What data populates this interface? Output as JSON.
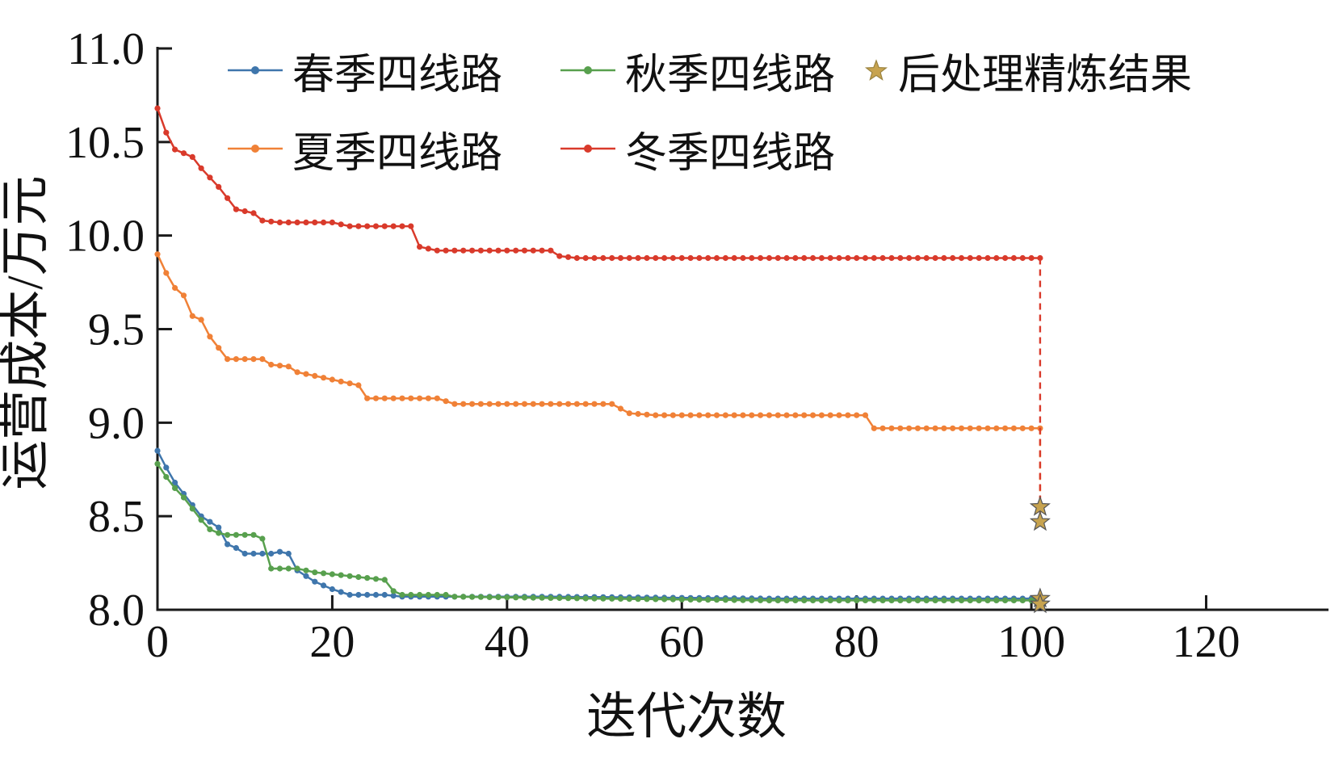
{
  "chart_data": {
    "type": "line",
    "title": "",
    "xlabel": "迭代次数",
    "ylabel": "运营成本/万元",
    "xlim": [
      0,
      134
    ],
    "ylim": [
      8.0,
      11.0
    ],
    "xticks": [
      0,
      20,
      40,
      60,
      80,
      100,
      120
    ],
    "yticks": [
      "8.0",
      "8.5",
      "9.0",
      "9.5",
      "10.0",
      "10.5",
      "11.0"
    ],
    "grid": false,
    "legend_position": "top-inside",
    "axis_color": "#1a1a1a",
    "series": [
      {
        "name": "春季四线路",
        "color": "#3f76ac",
        "points": [
          [
            0,
            8.85
          ],
          [
            1,
            8.76
          ],
          [
            2,
            8.68
          ],
          [
            3,
            8.62
          ],
          [
            4,
            8.56
          ],
          [
            5,
            8.5
          ],
          [
            6,
            8.47
          ],
          [
            7,
            8.44
          ],
          [
            8,
            8.35
          ],
          [
            9,
            8.33
          ],
          [
            10,
            8.3
          ],
          [
            13,
            8.3
          ],
          [
            14,
            8.31
          ],
          [
            15,
            8.3
          ],
          [
            16,
            8.21
          ],
          [
            18,
            8.15
          ],
          [
            20,
            8.11
          ],
          [
            22,
            8.08
          ],
          [
            26,
            8.08
          ],
          [
            28,
            8.07
          ],
          [
            45,
            8.07
          ],
          [
            70,
            8.06
          ],
          [
            101,
            8.06
          ]
        ]
      },
      {
        "name": "夏季四线路",
        "color": "#f08137",
        "points": [
          [
            0,
            9.9
          ],
          [
            1,
            9.8
          ],
          [
            2,
            9.72
          ],
          [
            3,
            9.68
          ],
          [
            4,
            9.57
          ],
          [
            5,
            9.55
          ],
          [
            6,
            9.46
          ],
          [
            7,
            9.4
          ],
          [
            8,
            9.34
          ],
          [
            12,
            9.34
          ],
          [
            13,
            9.31
          ],
          [
            15,
            9.3
          ],
          [
            16,
            9.27
          ],
          [
            18,
            9.25
          ],
          [
            20,
            9.23
          ],
          [
            22,
            9.21
          ],
          [
            23,
            9.2
          ],
          [
            24,
            9.13
          ],
          [
            32,
            9.13
          ],
          [
            34,
            9.1
          ],
          [
            52,
            9.1
          ],
          [
            54,
            9.05
          ],
          [
            57,
            9.04
          ],
          [
            81,
            9.04
          ],
          [
            82,
            8.97
          ],
          [
            101,
            8.97
          ]
        ],
        "drop": {
          "x": 101,
          "to": 8.47
        }
      },
      {
        "name": "秋季四线路",
        "color": "#58a04e",
        "points": [
          [
            0,
            8.78
          ],
          [
            1,
            8.71
          ],
          [
            2,
            8.65
          ],
          [
            3,
            8.6
          ],
          [
            4,
            8.54
          ],
          [
            5,
            8.48
          ],
          [
            6,
            8.43
          ],
          [
            7,
            8.41
          ],
          [
            8,
            8.4
          ],
          [
            11,
            8.4
          ],
          [
            12,
            8.38
          ],
          [
            13,
            8.22
          ],
          [
            16,
            8.22
          ],
          [
            18,
            8.2
          ],
          [
            20,
            8.19
          ],
          [
            24,
            8.17
          ],
          [
            26,
            8.16
          ],
          [
            27,
            8.1
          ],
          [
            28,
            8.08
          ],
          [
            33,
            8.08
          ],
          [
            34,
            8.07
          ],
          [
            50,
            8.06
          ],
          [
            70,
            8.05
          ],
          [
            101,
            8.05
          ]
        ]
      },
      {
        "name": "冬季四线路",
        "color": "#d93a2b",
        "points": [
          [
            0,
            10.68
          ],
          [
            1,
            10.55
          ],
          [
            2,
            10.46
          ],
          [
            3,
            10.44
          ],
          [
            4,
            10.42
          ],
          [
            5,
            10.36
          ],
          [
            6,
            10.31
          ],
          [
            7,
            10.26
          ],
          [
            8,
            10.2
          ],
          [
            9,
            10.14
          ],
          [
            10,
            10.13
          ],
          [
            11,
            10.12
          ],
          [
            12,
            10.08
          ],
          [
            14,
            10.07
          ],
          [
            20,
            10.07
          ],
          [
            21,
            10.06
          ],
          [
            22,
            10.05
          ],
          [
            29,
            10.05
          ],
          [
            30,
            9.94
          ],
          [
            32,
            9.92
          ],
          [
            45,
            9.92
          ],
          [
            46,
            9.89
          ],
          [
            48,
            9.88
          ],
          [
            101,
            9.88
          ]
        ],
        "drop": {
          "x": 101,
          "to": 8.55
        }
      }
    ],
    "refined_results": {
      "name": "后处理精炼结果",
      "marker": "star",
      "color": "#c7a34f",
      "points": [
        [
          101,
          8.55
        ],
        [
          101,
          8.47
        ],
        [
          101,
          8.06
        ],
        [
          101,
          8.03
        ]
      ]
    }
  }
}
